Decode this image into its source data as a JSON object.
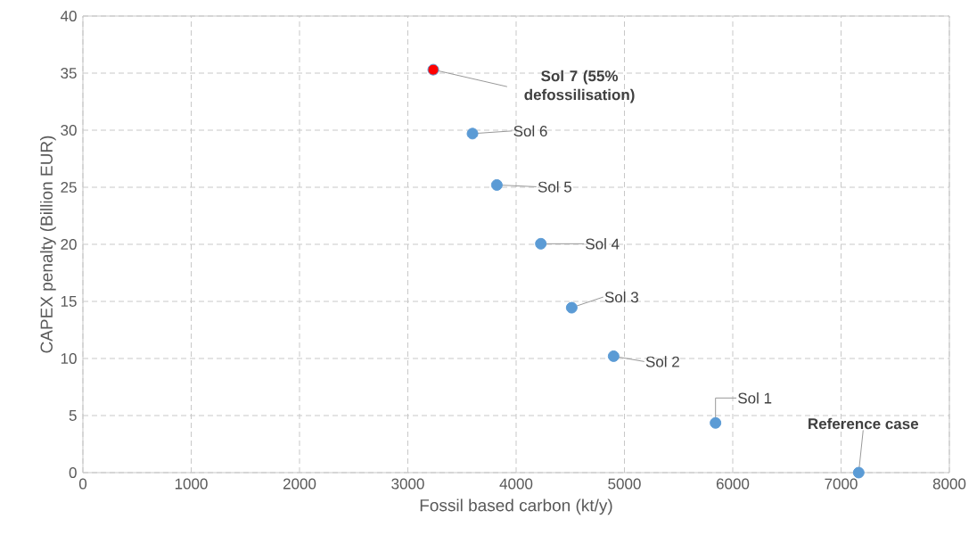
{
  "chart_data": {
    "type": "scatter",
    "xlabel": "Fossil based carbon (kt/y)",
    "ylabel": "CAPEX penalty (Billion EUR)",
    "x": [
      7163,
      5841,
      4900,
      4513,
      4228,
      3822,
      3597,
      3235
    ],
    "values": [
      0,
      4.35,
      10.2,
      14.45,
      20.05,
      25.2,
      29.7,
      35.3
    ],
    "color": "#5b9bd5",
    "colors": [
      "#5b9bd5",
      "#5b9bd5",
      "#5b9bd5",
      "#5b9bd5",
      "#5b9bd5",
      "#5b9bd5",
      "#5b9bd5",
      "#ff0000"
    ],
    "marker": "circle",
    "xlim": [
      0,
      8000
    ],
    "ylim": [
      0,
      40
    ],
    "xticks": [
      0,
      1000,
      2000,
      3000,
      4000,
      5000,
      6000,
      7000,
      8000
    ],
    "yticks": [
      0,
      5,
      10,
      15,
      20,
      25,
      30,
      35,
      40
    ],
    "grid": true,
    "annotations": [
      {
        "text": "**Reference case**",
        "x": 7163,
        "y": 0
      },
      {
        "text": "Sol 1",
        "x": 5841,
        "y": 4.35
      },
      {
        "text": "Sol 2",
        "x": 4900,
        "y": 10.2
      },
      {
        "text": "Sol 3",
        "x": 4513,
        "y": 14.45
      },
      {
        "text": "Sol 4",
        "x": 4228,
        "y": 20.05
      },
      {
        "text": "Sol 5",
        "x": 3822,
        "y": 25.2
      },
      {
        "text": "Sol 6",
        "x": 3597,
        "y": 29.7
      },
      {
        "text": "**Sol 7 (55% defossilisation)**",
        "x": 3235,
        "y": 35.3
      }
    ]
  }
}
